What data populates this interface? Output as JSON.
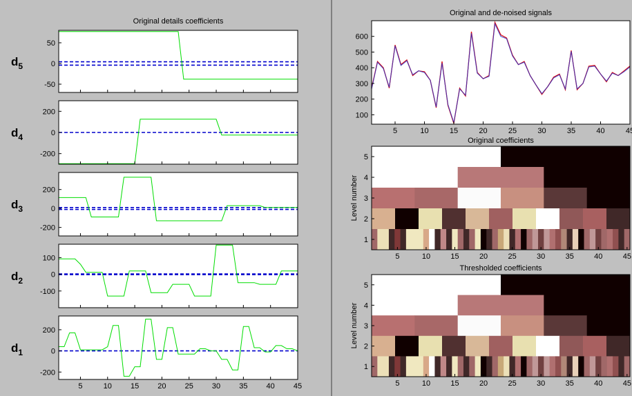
{
  "window": {
    "background": "#c0c0c0",
    "divider_color": "#808080"
  },
  "chart_data": [
    {
      "id": "details",
      "type": "line",
      "title": "Original details coefficients",
      "line_color": "#00dd00",
      "threshold_color": "#0000cc",
      "xlim": [
        1,
        45
      ],
      "xticks": [
        "5",
        "10",
        "15",
        "20",
        "25",
        "30",
        "35",
        "40",
        "45"
      ],
      "xtick_values": [
        5,
        10,
        15,
        20,
        25,
        30,
        35,
        40,
        45
      ],
      "panels": [
        {
          "label": "d",
          "sub": "5",
          "ylim": [
            -70,
            80
          ],
          "yticks": [
            "50",
            "0",
            "-50"
          ],
          "ytick_values": [
            50,
            0,
            -50
          ],
          "thresholds": [
            4,
            -4
          ],
          "x": [
            1,
            23,
            24,
            45
          ],
          "y": [
            77,
            77,
            -38,
            -38
          ]
        },
        {
          "label": "d",
          "sub": "4",
          "ylim": [
            -300,
            300
          ],
          "yticks": [
            "200",
            "0",
            "-200"
          ],
          "ytick_values": [
            200,
            0,
            -200
          ],
          "thresholds": [
            0
          ],
          "x": [
            1,
            15,
            16,
            30,
            31,
            45
          ],
          "y": [
            -295,
            -295,
            125,
            125,
            -25,
            -25
          ]
        },
        {
          "label": "d",
          "sub": "3",
          "ylim": [
            -290,
            380
          ],
          "yticks": [
            "200",
            "0",
            "-200"
          ],
          "ytick_values": [
            200,
            0,
            -200
          ],
          "thresholds": [
            10,
            -10
          ],
          "x": [
            1,
            6,
            7,
            12,
            13,
            18,
            19,
            24,
            25,
            31,
            32,
            38,
            39,
            45
          ],
          "y": [
            115,
            115,
            -90,
            -90,
            330,
            330,
            -130,
            -130,
            -130,
            -130,
            30,
            30,
            10,
            10
          ]
        },
        {
          "label": "d",
          "sub": "2",
          "ylim": [
            -200,
            180
          ],
          "yticks": [
            "100",
            "0",
            "-100"
          ],
          "ytick_values": [
            100,
            0,
            -100
          ],
          "thresholds": [
            2,
            -2
          ],
          "x": [
            1,
            3,
            4,
            5,
            6,
            7,
            8,
            9,
            10,
            11,
            12,
            13,
            14,
            15,
            16,
            17,
            18,
            19,
            20,
            21,
            22,
            23,
            24,
            25,
            26,
            27,
            28,
            29,
            30,
            31,
            32,
            33,
            34,
            35,
            36,
            37,
            38,
            39,
            40,
            41,
            42,
            43,
            44,
            45
          ],
          "y": [
            92,
            92,
            92,
            60,
            12,
            12,
            12,
            12,
            -130,
            -130,
            -130,
            -130,
            20,
            20,
            20,
            20,
            -110,
            -110,
            -110,
            -110,
            -60,
            -60,
            -60,
            -60,
            -130,
            -130,
            -130,
            -130,
            175,
            175,
            175,
            175,
            -50,
            -50,
            -50,
            -50,
            -60,
            -60,
            -60,
            -60,
            20,
            20,
            20,
            20
          ]
        },
        {
          "label": "d",
          "sub": "1",
          "ylim": [
            -270,
            330
          ],
          "yticks": [
            "200",
            "0",
            "-200"
          ],
          "ytick_values": [
            200,
            0,
            -200
          ],
          "thresholds": [
            0
          ],
          "x": [
            1,
            2,
            3,
            4,
            5,
            6,
            7,
            8,
            9,
            10,
            11,
            12,
            13,
            14,
            15,
            16,
            17,
            18,
            19,
            20,
            21,
            22,
            23,
            24,
            25,
            26,
            27,
            28,
            29,
            30,
            31,
            32,
            33,
            34,
            35,
            36,
            37,
            38,
            39,
            40,
            41,
            42,
            43,
            44,
            45
          ],
          "y": [
            40,
            40,
            170,
            170,
            10,
            10,
            10,
            10,
            10,
            40,
            240,
            240,
            -240,
            -240,
            -150,
            -150,
            300,
            300,
            -80,
            -80,
            220,
            220,
            -30,
            -30,
            -30,
            -30,
            20,
            20,
            0,
            0,
            -80,
            -80,
            -180,
            -180,
            230,
            230,
            30,
            30,
            -10,
            -10,
            50,
            50,
            20,
            20,
            0
          ]
        }
      ]
    },
    {
      "id": "signals",
      "type": "line",
      "title": "Original and de-noised signals",
      "xlim": [
        1,
        45
      ],
      "ylim": [
        40,
        700
      ],
      "xticks": [
        "5",
        "10",
        "15",
        "20",
        "25",
        "30",
        "35",
        "40",
        "45"
      ],
      "xtick_values": [
        5,
        10,
        15,
        20,
        25,
        30,
        35,
        40,
        45
      ],
      "yticks": [
        "600",
        "500",
        "400",
        "300",
        "200",
        "100"
      ],
      "ytick_values": [
        600,
        500,
        400,
        300,
        200,
        100
      ],
      "series": [
        {
          "color": "#e00000",
          "x": [
            1,
            2,
            3,
            4,
            5,
            6,
            7,
            8,
            9,
            10,
            11,
            12,
            13,
            14,
            15,
            16,
            17,
            18,
            19,
            20,
            21,
            22,
            23,
            24,
            25,
            26,
            27,
            28,
            29,
            30,
            31,
            32,
            33,
            34,
            35,
            36,
            37,
            38,
            39,
            40,
            41,
            42,
            43,
            44,
            45
          ],
          "y": [
            270,
            440,
            400,
            270,
            545,
            420,
            450,
            350,
            380,
            375,
            320,
            145,
            440,
            160,
            45,
            270,
            220,
            630,
            370,
            330,
            350,
            690,
            610,
            590,
            480,
            420,
            440,
            350,
            290,
            230,
            280,
            340,
            360,
            260,
            510,
            260,
            300,
            410,
            415,
            360,
            310,
            370,
            350,
            380,
            410
          ]
        },
        {
          "color": "#3030c0",
          "x": [
            1,
            2,
            3,
            4,
            5,
            6,
            7,
            8,
            9,
            10,
            11,
            12,
            13,
            14,
            15,
            16,
            17,
            18,
            19,
            20,
            21,
            22,
            23,
            24,
            25,
            26,
            27,
            28,
            29,
            30,
            31,
            32,
            33,
            34,
            35,
            36,
            37,
            38,
            39,
            40,
            41,
            42,
            43,
            44,
            45
          ],
          "y": [
            265,
            435,
            395,
            275,
            540,
            415,
            445,
            355,
            380,
            370,
            320,
            150,
            430,
            165,
            50,
            265,
            225,
            620,
            365,
            330,
            345,
            680,
            600,
            585,
            475,
            420,
            435,
            350,
            290,
            235,
            280,
            335,
            355,
            265,
            505,
            265,
            300,
            405,
            410,
            360,
            315,
            365,
            350,
            375,
            405
          ]
        }
      ]
    },
    {
      "id": "orig-coef",
      "type": "heatmap",
      "title": "Original coefficients",
      "ylabel": "Level number",
      "xlim": [
        0.5,
        45.5
      ],
      "xticks": [
        "5",
        "10",
        "15",
        "20",
        "25",
        "30",
        "35",
        "40",
        "45"
      ],
      "xtick_values": [
        5,
        10,
        15,
        20,
        25,
        30,
        35,
        40,
        45
      ],
      "yticks": [
        "5",
        "4",
        "3",
        "2",
        "1"
      ],
      "levels": [
        {
          "level": 5,
          "colors": [
            "#ffffff",
            "#100000"
          ]
        },
        {
          "level": 4,
          "colors": [
            "#ffffff",
            "#ffffff",
            "#b87878",
            "#b87878",
            "#100000",
            "#100000"
          ]
        },
        {
          "level": 3,
          "colors": [
            "#b87070",
            "#a86868",
            "#fbfbfb",
            "#c89080",
            "#5a3838",
            "#100000"
          ]
        },
        {
          "level": 2,
          "colors": [
            "#d8b090",
            "#100000",
            "#e8e0b0",
            "#503030",
            "#d8b898",
            "#a06060",
            "#e8e0b0",
            "#ffffff",
            "#905858",
            "#a86060",
            "#402828"
          ]
        },
        {
          "level": 1,
          "colors": [
            "#a06868",
            "#ece0b8",
            "#ece0b8",
            "#402828",
            "#803838",
            "#402828",
            "#f0e8c0",
            "#f0e8c0",
            "#f0e8c0",
            "#d8a888",
            "#ffffff",
            "#402828",
            "#c08888",
            "#402828",
            "#f0e8c0",
            "#a06868",
            "#402828",
            "#a06868",
            "#f0e8c0",
            "#100000",
            "#402828",
            "#a06868",
            "#c8a878",
            "#ece0b8",
            "#402828",
            "#b07070",
            "#100000",
            "#a06868",
            "#c09898",
            "#704040",
            "#c09898",
            "#b07070",
            "#905050",
            "#b08878",
            "#402828",
            "#e8d0b8",
            "#100000",
            "#a06868",
            "#c09898",
            "#704040",
            "#a06868",
            "#b07070",
            "#905050",
            "#402828",
            "#a06868"
          ]
        }
      ]
    },
    {
      "id": "thr-coef",
      "type": "heatmap",
      "title": "Thresholded coefficients",
      "ylabel": "Level number",
      "xlim": [
        0.5,
        45.5
      ],
      "xticks": [
        "5",
        "10",
        "15",
        "20",
        "25",
        "30",
        "35",
        "40",
        "45"
      ],
      "xtick_values": [
        5,
        10,
        15,
        20,
        25,
        30,
        35,
        40,
        45
      ],
      "yticks": [
        "5",
        "4",
        "3",
        "2",
        "1"
      ],
      "levels": [
        {
          "level": 5,
          "colors": [
            "#ffffff",
            "#100000"
          ]
        },
        {
          "level": 4,
          "colors": [
            "#ffffff",
            "#ffffff",
            "#b87878",
            "#b87878",
            "#100000",
            "#100000"
          ]
        },
        {
          "level": 3,
          "colors": [
            "#b87070",
            "#a86868",
            "#fbfbfb",
            "#c89080",
            "#5a3838",
            "#100000"
          ]
        },
        {
          "level": 2,
          "colors": [
            "#d8b090",
            "#100000",
            "#e8e0b0",
            "#503030",
            "#d8b898",
            "#a06060",
            "#e8e0b0",
            "#ffffff",
            "#905858",
            "#a86060",
            "#402828"
          ]
        },
        {
          "level": 1,
          "colors": [
            "#a06868",
            "#ece0b8",
            "#ece0b8",
            "#402828",
            "#803838",
            "#402828",
            "#f0e8c0",
            "#f0e8c0",
            "#f0e8c0",
            "#d8a888",
            "#ffffff",
            "#402828",
            "#c08888",
            "#402828",
            "#f0e8c0",
            "#a06868",
            "#402828",
            "#a06868",
            "#f0e8c0",
            "#100000",
            "#402828",
            "#a06868",
            "#c8a878",
            "#ece0b8",
            "#402828",
            "#b07070",
            "#100000",
            "#a06868",
            "#c09898",
            "#704040",
            "#c09898",
            "#b07070",
            "#905050",
            "#b08878",
            "#402828",
            "#e8d0b8",
            "#100000",
            "#a06868",
            "#c09898",
            "#704040",
            "#a06868",
            "#b07070",
            "#905050",
            "#402828",
            "#a06868"
          ]
        }
      ]
    }
  ]
}
